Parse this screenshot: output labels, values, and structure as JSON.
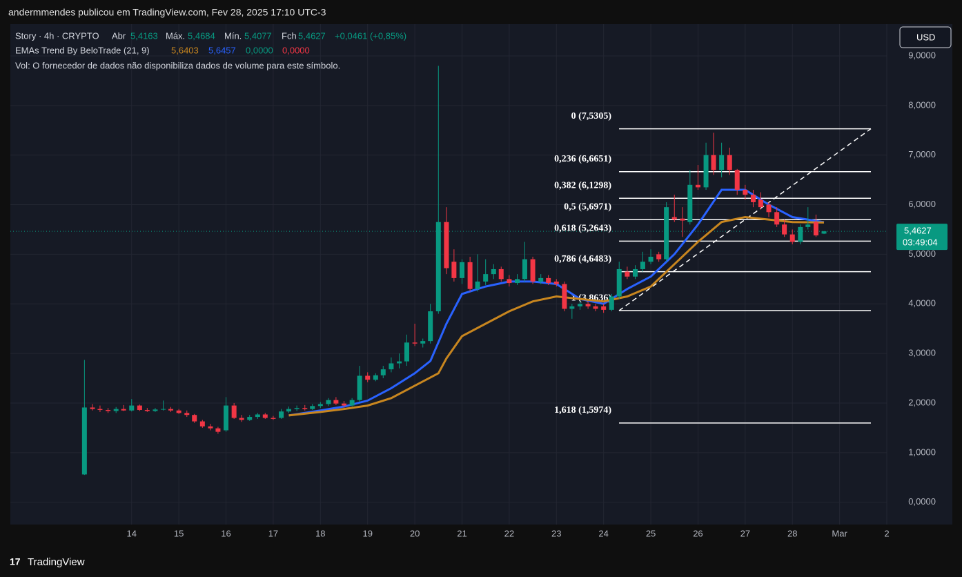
{
  "header": {
    "title": "andermmendes publicou em TradingView.com, Fev 28, 2025 17:10 UTC-3"
  },
  "legend": {
    "symbol": "Story · 4h · CRYPTO",
    "open_label": "Abr",
    "open": "5,4163",
    "high_label": "Máx.",
    "high": "5,4684",
    "low_label": "Mín.",
    "low": "5,4077",
    "close_label": "Fch",
    "close": "5,4627",
    "change": "+0,0461 (+0,85%)",
    "indicator": "EMAs Trend By BeloTrade (21, 9)",
    "indicator_values": [
      "5,6403",
      "5,6457",
      "0,0000",
      "0,0000"
    ],
    "volume": "Vol: O fornecedor de dados não disponibiliza dados de volume para este símbolo."
  },
  "currency": "USD",
  "footer": {
    "brand": "TradingView"
  },
  "chart_data": {
    "type": "candlestick",
    "up_color": "#089981",
    "down_color": "#f23645",
    "xlim": [
      11.43,
      30
    ],
    "xticks": [
      14,
      15,
      16,
      17,
      18,
      19,
      20,
      21,
      22,
      23,
      24,
      25,
      26,
      27,
      28,
      {
        "value": 29,
        "label": "Mar"
      },
      {
        "value": 30,
        "label": "2"
      }
    ],
    "ylim": [
      -0.45,
      9.64
    ],
    "yticks": [
      {
        "value": 0,
        "label": "0,0000"
      },
      {
        "value": 1,
        "label": "1,0000"
      },
      {
        "value": 2,
        "label": "2,0000"
      },
      {
        "value": 3,
        "label": "3,0000"
      },
      {
        "value": 4,
        "label": "4,0000"
      },
      {
        "value": 5,
        "label": "5,0000"
      },
      {
        "value": 6,
        "label": "6,0000"
      },
      {
        "value": 7,
        "label": "7,0000"
      },
      {
        "value": 8,
        "label": "8,0000"
      },
      {
        "value": 9,
        "label": "9,0000"
      }
    ],
    "grid": true,
    "last_price": {
      "value": 5.4627,
      "label": "5,4627",
      "countdown": "03:49:04"
    },
    "candles": [
      [
        13,
        0.56,
        2.87,
        0.55,
        1.91
      ],
      [
        13.17,
        1.91,
        1.98,
        1.85,
        1.88
      ],
      [
        13.33,
        1.88,
        1.95,
        1.82,
        1.86
      ],
      [
        13.5,
        1.86,
        1.9,
        1.8,
        1.84
      ],
      [
        13.67,
        1.84,
        1.92,
        1.8,
        1.88
      ],
      [
        13.83,
        1.88,
        1.96,
        1.84,
        1.85
      ],
      [
        14,
        1.85,
        2.08,
        1.83,
        1.95
      ],
      [
        14.17,
        1.95,
        1.97,
        1.84,
        1.86
      ],
      [
        14.33,
        1.86,
        1.9,
        1.82,
        1.84
      ],
      [
        14.5,
        1.84,
        1.9,
        1.82,
        1.87
      ],
      [
        14.67,
        1.87,
        2.05,
        1.85,
        1.88
      ],
      [
        14.83,
        1.88,
        1.92,
        1.82,
        1.85
      ],
      [
        15,
        1.85,
        1.88,
        1.78,
        1.8
      ],
      [
        15.17,
        1.8,
        1.85,
        1.72,
        1.76
      ],
      [
        15.33,
        1.76,
        1.78,
        1.6,
        1.63
      ],
      [
        15.5,
        1.63,
        1.66,
        1.5,
        1.53
      ],
      [
        15.67,
        1.53,
        1.58,
        1.45,
        1.49
      ],
      [
        15.83,
        1.49,
        1.52,
        1.38,
        1.42
      ],
      [
        16,
        1.45,
        2.12,
        1.42,
        1.95
      ],
      [
        16.17,
        1.95,
        2.0,
        1.68,
        1.7
      ],
      [
        16.33,
        1.7,
        1.76,
        1.62,
        1.66
      ],
      [
        16.5,
        1.66,
        1.76,
        1.64,
        1.72
      ],
      [
        16.67,
        1.72,
        1.8,
        1.68,
        1.77
      ],
      [
        16.83,
        1.77,
        1.8,
        1.68,
        1.7
      ],
      [
        17,
        1.7,
        1.74,
        1.66,
        1.68
      ],
      [
        17.17,
        1.7,
        1.88,
        1.68,
        1.83
      ],
      [
        17.33,
        1.83,
        1.93,
        1.8,
        1.88
      ],
      [
        17.5,
        1.88,
        1.95,
        1.84,
        1.9
      ],
      [
        17.67,
        1.9,
        1.96,
        1.85,
        1.88
      ],
      [
        17.83,
        1.88,
        1.98,
        1.86,
        1.94
      ],
      [
        18,
        1.94,
        2.02,
        1.9,
        1.98
      ],
      [
        18.17,
        1.98,
        2.1,
        1.94,
        2.06
      ],
      [
        18.33,
        2.06,
        2.12,
        1.96,
        1.99
      ],
      [
        18.5,
        1.99,
        2.04,
        1.9,
        1.95
      ],
      [
        18.67,
        1.95,
        2.1,
        1.93,
        2.06
      ],
      [
        18.83,
        2.06,
        2.75,
        2.02,
        2.55
      ],
      [
        19,
        2.55,
        2.62,
        2.42,
        2.47
      ],
      [
        19.17,
        2.47,
        2.6,
        2.44,
        2.56
      ],
      [
        19.33,
        2.56,
        2.75,
        2.5,
        2.68
      ],
      [
        19.5,
        2.68,
        2.92,
        2.62,
        2.8
      ],
      [
        19.67,
        2.8,
        3.0,
        2.7,
        2.84
      ],
      [
        19.83,
        2.84,
        3.38,
        2.75,
        3.22
      ],
      [
        20,
        3.22,
        3.6,
        3.15,
        3.2
      ],
      [
        20.17,
        3.2,
        3.3,
        3.12,
        3.25
      ],
      [
        20.33,
        3.25,
        4.0,
        3.2,
        3.85
      ],
      [
        20.5,
        3.85,
        8.8,
        3.8,
        5.65
      ],
      [
        20.67,
        5.65,
        5.95,
        4.6,
        4.72
      ],
      [
        20.83,
        4.85,
        5.1,
        4.45,
        4.52
      ],
      [
        21,
        4.52,
        4.9,
        4.4,
        4.84
      ],
      [
        21.17,
        4.84,
        4.95,
        4.25,
        4.3
      ],
      [
        21.33,
        4.3,
        5.0,
        4.25,
        4.45
      ],
      [
        21.5,
        4.45,
        4.9,
        4.38,
        4.6
      ],
      [
        21.67,
        4.6,
        4.8,
        4.5,
        4.7
      ],
      [
        21.83,
        4.7,
        4.75,
        4.45,
        4.5
      ],
      [
        22,
        4.5,
        4.58,
        4.35,
        4.42
      ],
      [
        22.17,
        4.42,
        4.6,
        4.38,
        4.5
      ],
      [
        22.33,
        4.5,
        5.25,
        4.45,
        4.9
      ],
      [
        22.5,
        4.9,
        4.95,
        4.4,
        4.45
      ],
      [
        22.67,
        4.45,
        4.6,
        4.4,
        4.52
      ],
      [
        22.83,
        4.52,
        4.58,
        4.38,
        4.42
      ],
      [
        23,
        4.45,
        4.5,
        4.35,
        4.4
      ],
      [
        23.17,
        4.4,
        4.45,
        3.85,
        3.9
      ],
      [
        23.33,
        3.9,
        4.0,
        3.7,
        3.95
      ],
      [
        23.5,
        3.95,
        4.05,
        3.88,
        4.0
      ],
      [
        23.67,
        4.0,
        4.05,
        3.9,
        3.95
      ],
      [
        23.83,
        3.95,
        4.0,
        3.85,
        3.9
      ],
      [
        24,
        3.95,
        4.0,
        3.82,
        3.88
      ],
      [
        24.17,
        3.88,
        4.2,
        3.85,
        4.15
      ],
      [
        24.33,
        4.15,
        4.85,
        4.1,
        4.7
      ],
      [
        24.5,
        4.65,
        4.75,
        4.5,
        4.55
      ],
      [
        24.67,
        4.55,
        4.78,
        4.5,
        4.7
      ],
      [
        24.83,
        4.7,
        5.05,
        4.65,
        4.85
      ],
      [
        25,
        4.85,
        5.1,
        4.8,
        4.95
      ],
      [
        25.17,
        5.0,
        5.05,
        4.85,
        4.9
      ],
      [
        25.33,
        4.9,
        6.05,
        4.85,
        5.95
      ],
      [
        25.5,
        5.75,
        6.2,
        5.65,
        5.7
      ],
      [
        25.67,
        5.72,
        5.95,
        5.35,
        5.68
      ],
      [
        25.83,
        5.65,
        6.7,
        5.6,
        6.4
      ],
      [
        26,
        6.4,
        6.8,
        6.3,
        6.35
      ],
      [
        26.17,
        6.35,
        7.25,
        6.3,
        7.0
      ],
      [
        26.33,
        7.0,
        7.45,
        6.6,
        6.7
      ],
      [
        26.5,
        6.7,
        7.25,
        6.55,
        7.0
      ],
      [
        26.67,
        7.0,
        7.15,
        6.6,
        6.7
      ],
      [
        26.83,
        6.7,
        6.72,
        6.2,
        6.3
      ],
      [
        27,
        6.3,
        6.4,
        6.1,
        6.2
      ],
      [
        27.17,
        6.2,
        6.3,
        5.95,
        6.05
      ],
      [
        27.33,
        6.1,
        6.25,
        5.9,
        5.95
      ],
      [
        27.5,
        6.0,
        6.05,
        5.75,
        5.85
      ],
      [
        27.67,
        5.85,
        5.95,
        5.55,
        5.6
      ],
      [
        27.83,
        5.6,
        5.7,
        5.35,
        5.4
      ],
      [
        28,
        5.4,
        5.5,
        5.2,
        5.25
      ],
      [
        28.17,
        5.25,
        5.6,
        5.2,
        5.55
      ],
      [
        28.33,
        5.55,
        5.95,
        5.5,
        5.6
      ],
      [
        28.5,
        5.65,
        5.8,
        5.35,
        5.38
      ],
      [
        28.67,
        5.4163,
        5.4684,
        5.4077,
        5.4627
      ]
    ],
    "series": [
      {
        "color": "#2962ff",
        "x": [
          17.33,
          18,
          18.5,
          19,
          19.5,
          20,
          20.33,
          20.67,
          21,
          21.5,
          22,
          22.5,
          23,
          23.5,
          24,
          24.5,
          25,
          25.5,
          26,
          26.5,
          27,
          27.5,
          28,
          28.67
        ],
        "values": [
          1.75,
          1.85,
          1.93,
          2.05,
          2.3,
          2.6,
          2.85,
          3.6,
          4.2,
          4.35,
          4.45,
          4.45,
          4.4,
          4.1,
          4.0,
          4.3,
          4.55,
          5.0,
          5.6,
          6.3,
          6.3,
          6.0,
          5.75,
          5.6457
        ]
      },
      {
        "color": "#c8861f",
        "x": [
          17.33,
          18,
          18.5,
          19,
          19.5,
          20,
          20.5,
          20.67,
          21,
          21.5,
          22,
          22.5,
          23,
          23.5,
          24,
          24.5,
          25,
          25.5,
          26,
          26.5,
          27,
          27.5,
          28,
          28.67
        ],
        "values": [
          1.75,
          1.82,
          1.88,
          1.95,
          2.1,
          2.35,
          2.6,
          2.9,
          3.35,
          3.6,
          3.85,
          4.05,
          4.15,
          4.1,
          4.05,
          4.15,
          4.35,
          4.8,
          5.25,
          5.65,
          5.75,
          5.7,
          5.65,
          5.6403
        ]
      }
    ],
    "fib_levels": [
      {
        "value": 7.5305,
        "label": "0 (7,5305)"
      },
      {
        "value": 6.6651,
        "label": "0,236 (6,6651)"
      },
      {
        "value": 6.1298,
        "label": "0,382 (6,1298)"
      },
      {
        "value": 5.6971,
        "label": "0,5 (5,6971)"
      },
      {
        "value": 5.2643,
        "label": "0,618 (5,2643)"
      },
      {
        "value": 4.6483,
        "label": "0,786 (4,6483)"
      },
      {
        "value": 3.8636,
        "label": "1 (3,8636)"
      },
      {
        "value": 1.5974,
        "label": "1,618 (1,5974)"
      }
    ]
  }
}
